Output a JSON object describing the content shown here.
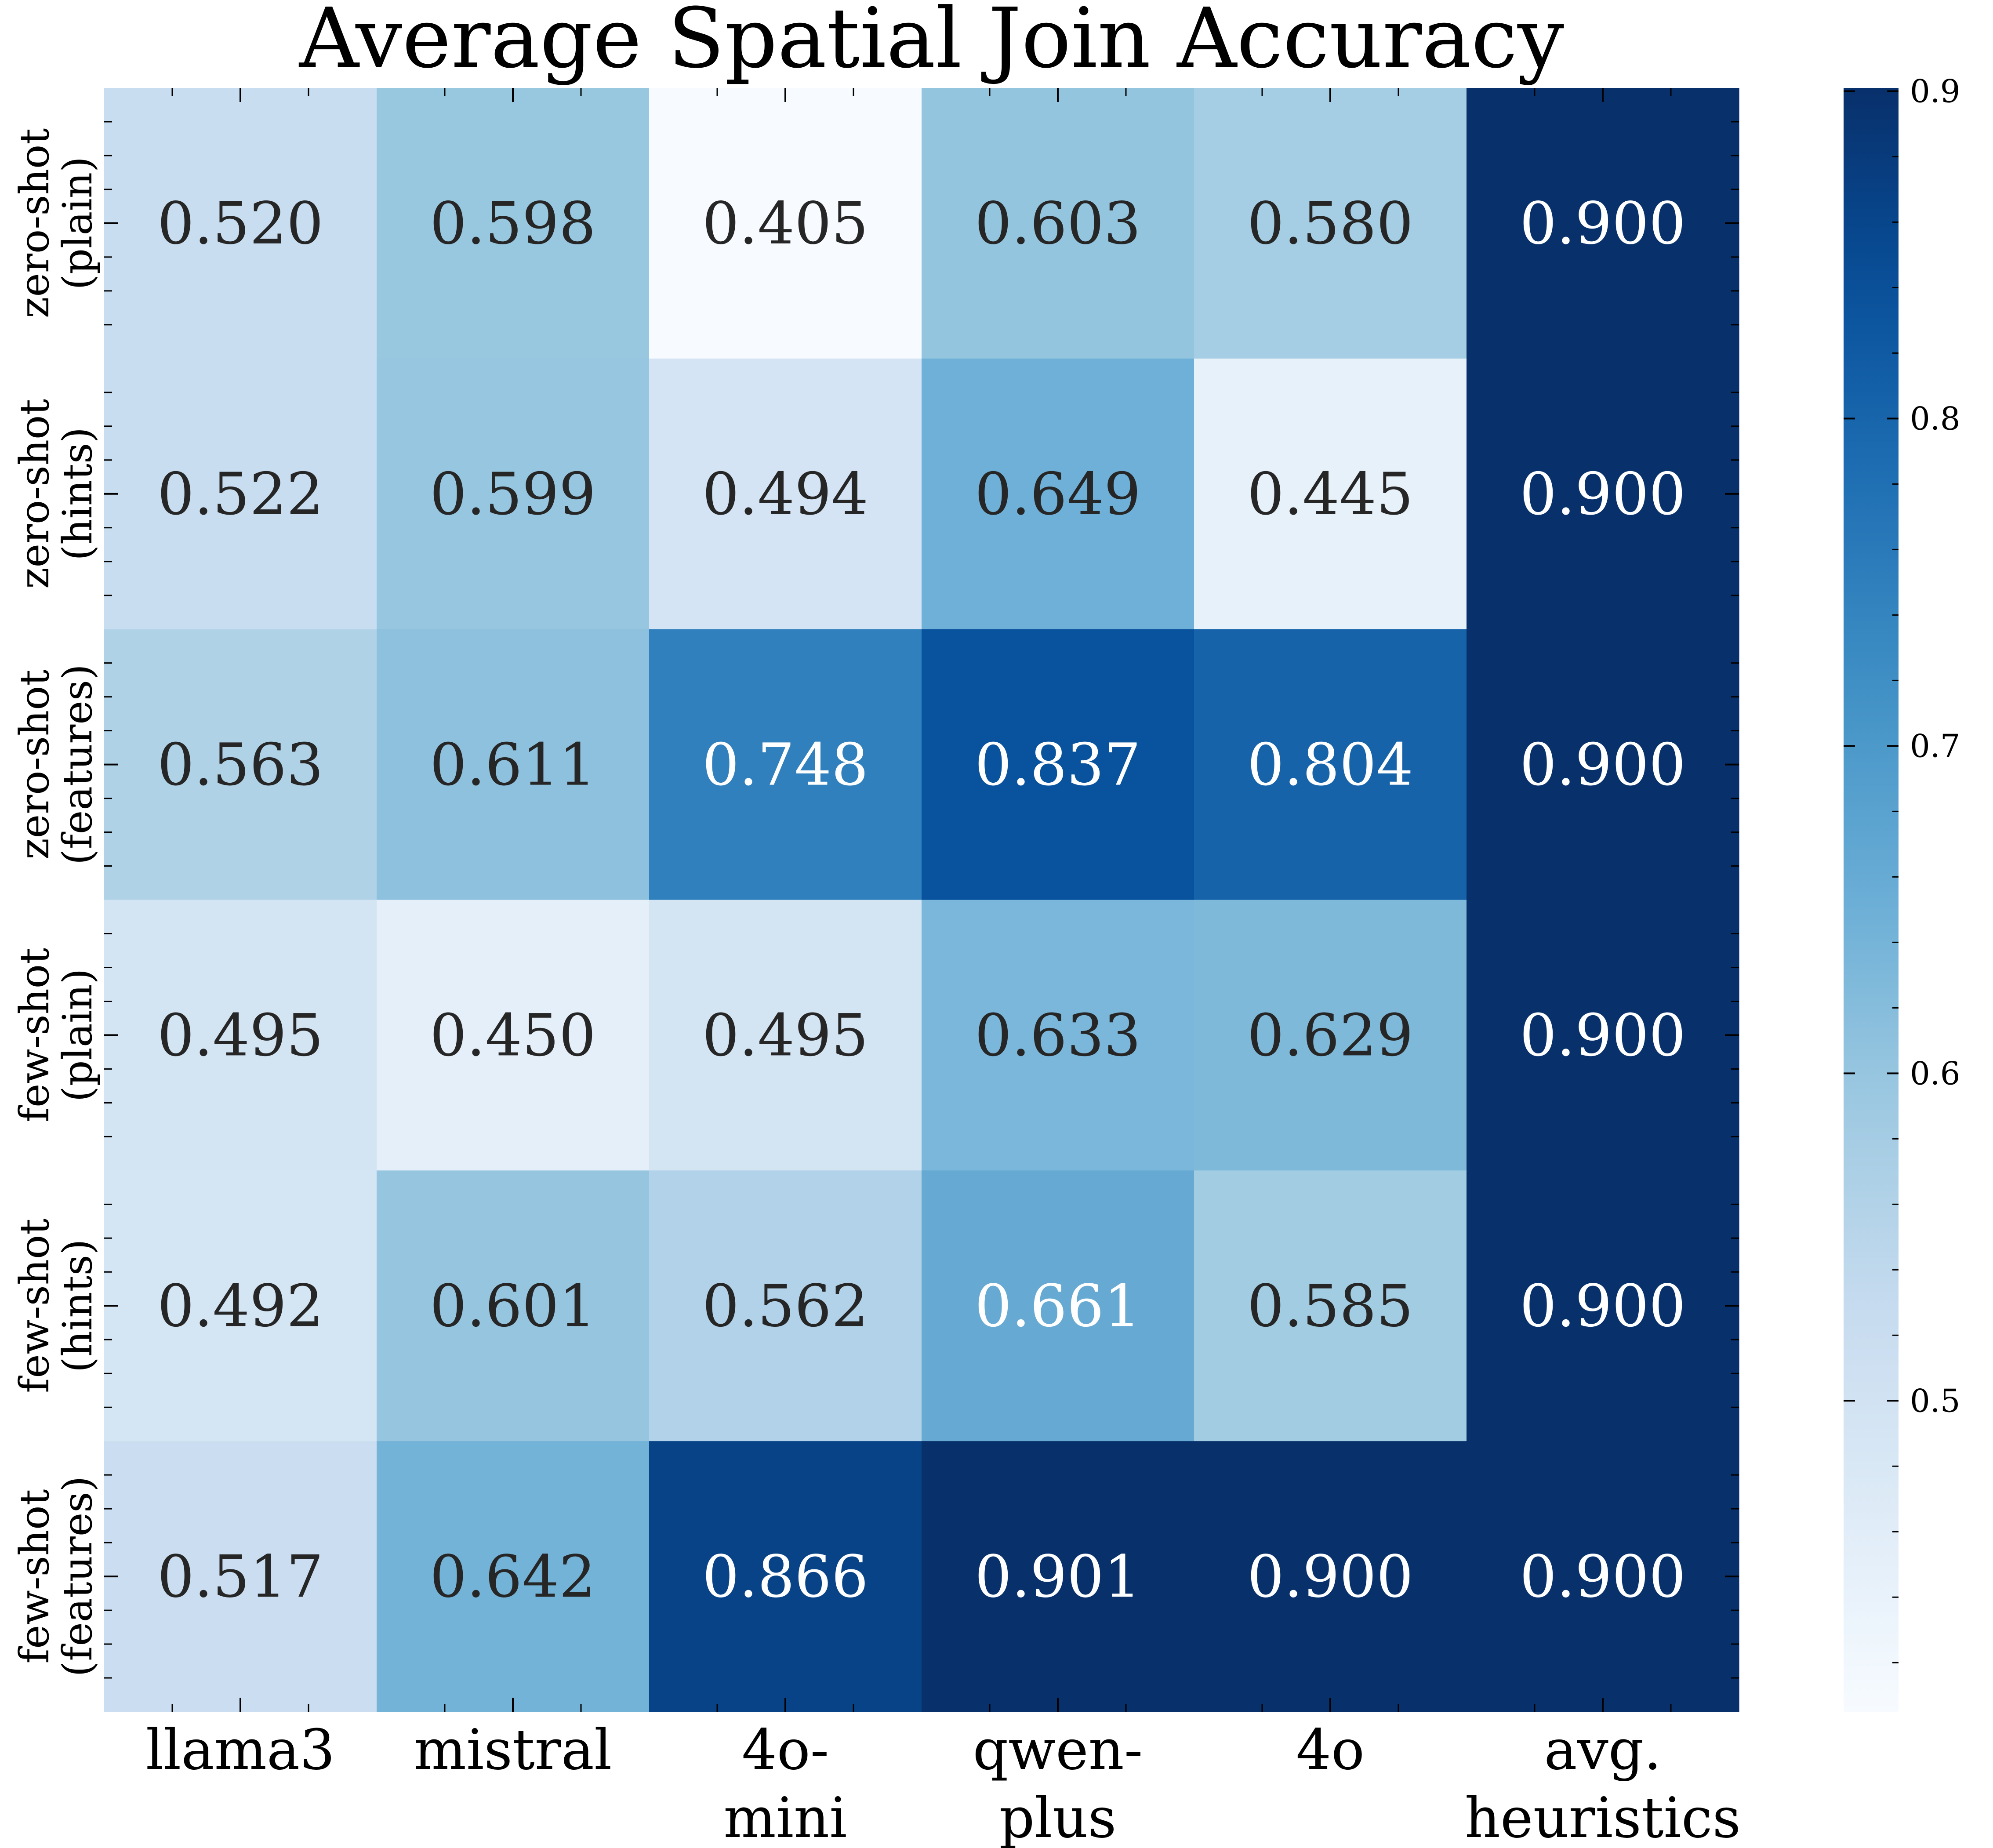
{
  "chart_data": {
    "type": "heatmap",
    "title": "Average Spatial Join Accuracy",
    "columns": [
      [
        "llama3"
      ],
      [
        "mistral"
      ],
      [
        "4o-",
        "mini"
      ],
      [
        "qwen-",
        "plus"
      ],
      [
        "4o"
      ],
      [
        "avg.",
        "heuristics"
      ]
    ],
    "rows": [
      [
        "zero-shot",
        "(plain)"
      ],
      [
        "zero-shot",
        "(hints)"
      ],
      [
        "zero-shot",
        "(features)"
      ],
      [
        "few-shot",
        "(plain)"
      ],
      [
        "few-shot",
        "(hints)"
      ],
      [
        "few-shot",
        "(features)"
      ]
    ],
    "values": [
      [
        0.52,
        0.598,
        0.405,
        0.603,
        0.58,
        0.9
      ],
      [
        0.522,
        0.599,
        0.494,
        0.649,
        0.445,
        0.9
      ],
      [
        0.563,
        0.611,
        0.748,
        0.837,
        0.804,
        0.9
      ],
      [
        0.495,
        0.45,
        0.495,
        0.633,
        0.629,
        0.9
      ],
      [
        0.492,
        0.601,
        0.562,
        0.661,
        0.585,
        0.9
      ],
      [
        0.517,
        0.642,
        0.866,
        0.901,
        0.9,
        0.9
      ]
    ],
    "value_format": "3 decimals",
    "colormap": "Blues",
    "color_range": [
      0.405,
      0.901
    ],
    "colorbar_ticks": [
      "0.5",
      "0.6",
      "0.7",
      "0.8",
      "0.9"
    ],
    "colorbar_tick_values": [
      0.5,
      0.6,
      0.7,
      0.8,
      0.9
    ],
    "legend": "colorbar right"
  }
}
